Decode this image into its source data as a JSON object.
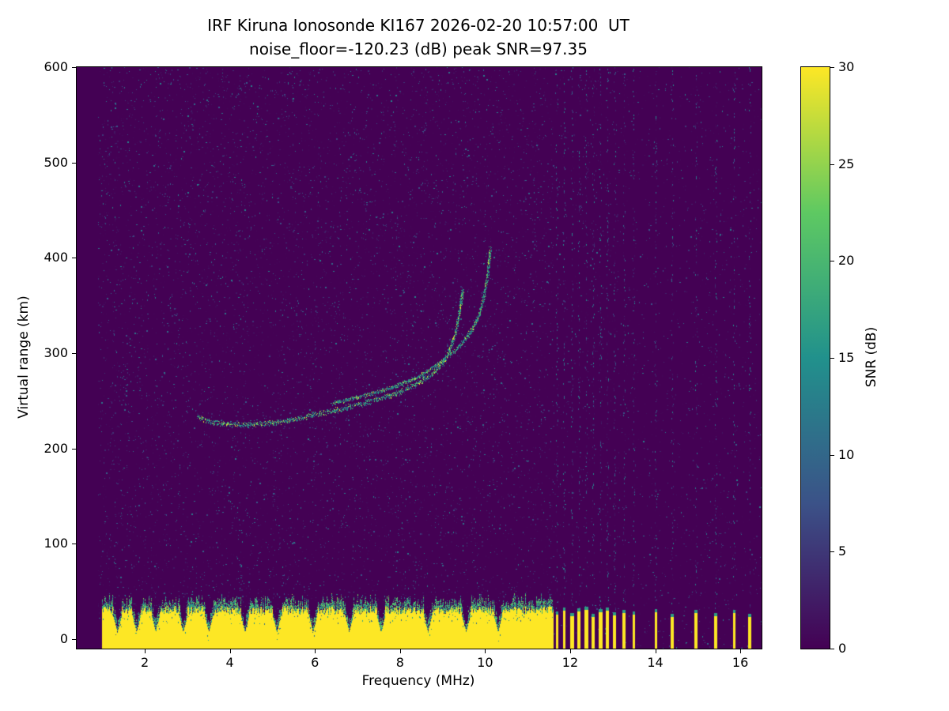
{
  "chart_data": {
    "type": "heatmap",
    "title": "IRF Kiruna Ionosonde KI167 2026-02-20 10:57:00  UT",
    "subtitle": "noise_floor=-120.23 (dB) peak SNR=97.35",
    "xlabel": "Frequency (MHz)",
    "ylabel": "Virtual range (km)",
    "colorbar_label": "SNR (dB)",
    "colormap": "viridis",
    "colormap_stops": [
      [
        0,
        "#440154"
      ],
      [
        0.25,
        "#3b5288"
      ],
      [
        0.5,
        "#21918c"
      ],
      [
        0.75,
        "#5ec962"
      ],
      [
        1,
        "#fde725"
      ]
    ],
    "xlim": [
      0.4,
      16.5
    ],
    "ylim": [
      -10,
      600
    ],
    "clim": [
      0,
      30
    ],
    "xticks": [
      2,
      4,
      6,
      8,
      10,
      12,
      14,
      16
    ],
    "yticks": [
      0,
      100,
      200,
      300,
      400,
      500,
      600
    ],
    "colorbar_ticks": [
      0,
      5,
      10,
      15,
      20,
      25,
      30
    ],
    "noise_floor_db": -120.23,
    "peak_snr_db": 97.35,
    "data_start_freq": 0.9,
    "ground_band": {
      "freq_start": 1.0,
      "freq_end": 11.6,
      "top_km": 30,
      "notch_freqs": [
        1.35,
        1.8,
        2.25,
        2.9,
        3.5,
        4.35,
        5.1,
        5.95,
        6.8,
        7.55,
        8.65,
        9.55,
        10.3
      ]
    },
    "interference_bars": [
      [
        11.68,
        26
      ],
      [
        11.85,
        30
      ],
      [
        12.03,
        24
      ],
      [
        12.2,
        29
      ],
      [
        12.37,
        31
      ],
      [
        12.54,
        23
      ],
      [
        12.7,
        28
      ],
      [
        12.87,
        30
      ],
      [
        13.04,
        25
      ],
      [
        13.26,
        27
      ],
      [
        13.48,
        26
      ],
      [
        14.0,
        28
      ],
      [
        14.4,
        23
      ],
      [
        14.96,
        27
      ],
      [
        15.43,
        24
      ],
      [
        15.85,
        27
      ],
      [
        16.22,
        23
      ]
    ],
    "echo_trace_o_mode": [
      [
        3.25,
        234
      ],
      [
        3.5,
        229
      ],
      [
        3.9,
        226
      ],
      [
        4.4,
        225
      ],
      [
        4.9,
        227
      ],
      [
        5.4,
        230
      ],
      [
        5.9,
        235
      ],
      [
        6.4,
        240
      ],
      [
        6.9,
        245
      ],
      [
        7.4,
        251
      ],
      [
        7.9,
        258
      ],
      [
        8.3,
        266
      ],
      [
        8.7,
        277
      ],
      [
        9.0,
        290
      ],
      [
        9.15,
        303
      ],
      [
        9.3,
        322
      ],
      [
        9.4,
        345
      ],
      [
        9.47,
        368
      ]
    ],
    "echo_trace_x_mode": [
      [
        6.4,
        248
      ],
      [
        6.9,
        253
      ],
      [
        7.4,
        259
      ],
      [
        7.9,
        266
      ],
      [
        8.4,
        275
      ],
      [
        8.8,
        286
      ],
      [
        9.1,
        296
      ],
      [
        9.4,
        308
      ],
      [
        9.65,
        322
      ],
      [
        9.85,
        340
      ],
      [
        9.98,
        362
      ],
      [
        10.07,
        388
      ],
      [
        10.12,
        412
      ]
    ]
  }
}
